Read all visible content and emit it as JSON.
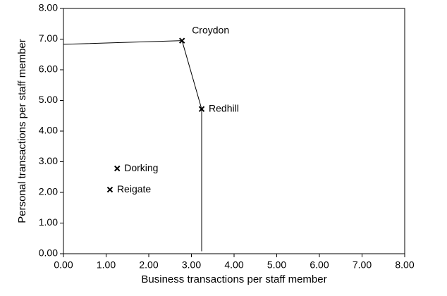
{
  "chart_data": {
    "type": "scatter",
    "xlabel": "Business transactions per staff member",
    "ylabel": "Personal transactions per staff member",
    "xlim": [
      0,
      8
    ],
    "ylim": [
      0,
      8
    ],
    "xticks": [
      {
        "value": 0,
        "label": "0.00"
      },
      {
        "value": 1,
        "label": "1.00"
      },
      {
        "value": 2,
        "label": "2.00"
      },
      {
        "value": 3,
        "label": "3.00"
      },
      {
        "value": 4,
        "label": "4.00"
      },
      {
        "value": 5,
        "label": "5.00"
      },
      {
        "value": 6,
        "label": "6.00"
      },
      {
        "value": 7,
        "label": "7.00"
      },
      {
        "value": 8,
        "label": "8.00"
      }
    ],
    "yticks": [
      {
        "value": 0,
        "label": "0.00"
      },
      {
        "value": 1,
        "label": "1.00"
      },
      {
        "value": 2,
        "label": "2.00"
      },
      {
        "value": 3,
        "label": "3.00"
      },
      {
        "value": 4,
        "label": "4.00"
      },
      {
        "value": 5,
        "label": "5.00"
      },
      {
        "value": 6,
        "label": "6.00"
      },
      {
        "value": 7,
        "label": "7.00"
      },
      {
        "value": 8,
        "label": "8.00"
      }
    ],
    "color": "#000000",
    "points": {
      "labels": [
        "Croydon",
        "Redhill",
        "Dorking",
        "Reigate"
      ],
      "x": [
        2.78,
        3.24,
        1.26,
        1.09
      ],
      "y": [
        6.95,
        4.72,
        2.78,
        2.09
      ]
    },
    "frontier": {
      "x": [
        0,
        2.78,
        3.24,
        3.24
      ],
      "y": [
        6.83,
        6.95,
        4.72,
        0.08
      ]
    }
  }
}
